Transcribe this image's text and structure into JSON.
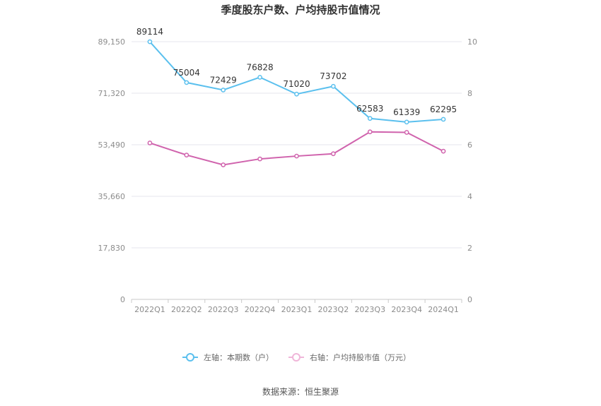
{
  "chart_data": {
    "type": "line",
    "title": "季度股东户数、户均持股市值情况",
    "categories": [
      "2022Q1",
      "2022Q2",
      "2022Q3",
      "2022Q4",
      "2023Q1",
      "2023Q2",
      "2023Q3",
      "2023Q4",
      "2024Q1"
    ],
    "left_axis": {
      "ylim": [
        0,
        89150
      ],
      "ticks": [
        0,
        17830,
        35660,
        53490,
        71320,
        89150
      ],
      "tick_labels": [
        "0",
        "17,830",
        "35,660",
        "53,490",
        "71,320",
        "89,150"
      ]
    },
    "right_axis": {
      "ylim": [
        0,
        10
      ],
      "ticks": [
        0,
        2,
        4,
        6,
        8,
        10
      ],
      "tick_labels": [
        "0",
        "2",
        "4",
        "6",
        "8",
        "10"
      ]
    },
    "series": [
      {
        "name": "左轴：本期数（户）",
        "axis": "left",
        "color": "#5bc0ee",
        "values": [
          89114,
          75004,
          72429,
          76828,
          71020,
          73702,
          62583,
          61339,
          62295
        ],
        "labels": [
          "89114",
          "75004",
          "72429",
          "76828",
          "71020",
          "73702",
          "62583",
          "61339",
          "62295"
        ]
      },
      {
        "name": "右轴：户均持股市值（万元）",
        "axis": "right",
        "color": "#d063ad",
        "values": [
          6.07,
          5.6,
          5.22,
          5.45,
          5.56,
          5.65,
          6.5,
          6.48,
          5.75
        ]
      }
    ],
    "grid": true,
    "legend_position": "bottom-center"
  },
  "source": "数据来源：恒生聚源",
  "colors": {
    "legend_right_marker": "#f0b6d9",
    "grid": "#e6e6ee",
    "axis": "#c8c8c8"
  }
}
